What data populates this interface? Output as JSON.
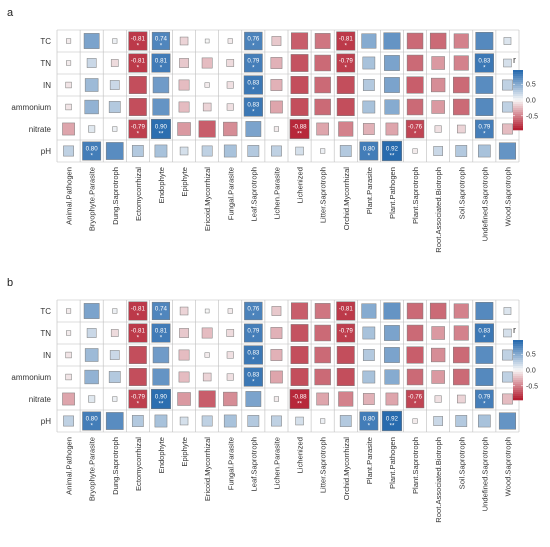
{
  "chart_data": [
    {
      "panel_label": "a",
      "type": "heatmap",
      "rows": [
        "TC",
        "TN",
        "IN",
        "ammonium",
        "nitrate",
        "pH"
      ],
      "columns": [
        "Animal.Pathogen",
        "Bryophyte.Parasite",
        "Dung.Saprotroph",
        "Ectomycorrhizal",
        "Endophyte",
        "Epiphyte",
        "Ericoid.Mycorrhizal",
        "Fungal.Parasite",
        "Leaf.Saprotroph",
        "Lichen.Parasite",
        "Lichenized",
        "Litter.Saprotroph",
        "Orchid.Mycorrhizal",
        "Plant.Parasite",
        "Plant.Pathogen",
        "Plant.Saprotroph",
        "Root.Associated.Biotroph",
        "Soil.Saprotroph",
        "Undefined.Saprotroph",
        "Wood.Saprotroph"
      ],
      "values": [
        [
          -0.05,
          0.55,
          0.05,
          -0.81,
          0.74,
          -0.15,
          0.0,
          -0.05,
          0.76,
          -0.2,
          -0.65,
          -0.55,
          -0.81,
          0.5,
          0.65,
          -0.6,
          -0.6,
          -0.5,
          0.72,
          0.12
        ],
        [
          -0.05,
          0.2,
          -0.12,
          -0.81,
          0.81,
          -0.2,
          -0.25,
          -0.12,
          0.79,
          -0.3,
          -0.7,
          -0.6,
          -0.79,
          0.35,
          0.55,
          -0.6,
          -0.4,
          -0.5,
          0.83,
          0.15
        ],
        [
          -0.08,
          0.4,
          0.2,
          -0.72,
          0.6,
          -0.25,
          -0.05,
          -0.1,
          0.83,
          -0.3,
          -0.72,
          -0.6,
          -0.72,
          0.3,
          0.55,
          -0.65,
          -0.45,
          -0.6,
          0.7,
          0.25
        ],
        [
          -0.08,
          0.45,
          0.3,
          -0.72,
          0.65,
          -0.25,
          -0.15,
          -0.1,
          0.83,
          -0.35,
          -0.72,
          -0.6,
          -0.72,
          0.35,
          0.5,
          -0.6,
          -0.4,
          -0.6,
          0.72,
          0.25
        ],
        [
          -0.35,
          0.1,
          0.05,
          -0.79,
          0.9,
          -0.4,
          -0.65,
          -0.45,
          0.55,
          -0.05,
          -0.88,
          -0.35,
          -0.5,
          -0.3,
          -0.35,
          -0.76,
          -0.1,
          -0.15,
          0.79,
          -0.25
        ],
        [
          0.25,
          0.8,
          0.7,
          0.3,
          0.35,
          0.15,
          0.25,
          0.35,
          0.3,
          0.25,
          0.15,
          0.05,
          0.3,
          0.8,
          0.92,
          -0.05,
          0.2,
          0.3,
          0.35,
          0.65
        ]
      ],
      "annotations": [
        {
          "row": "TC",
          "col": "Ectomycorrhizal",
          "label": "-0.81",
          "sig": "*"
        },
        {
          "row": "TC",
          "col": "Endophyte",
          "label": "0.74",
          "sig": "*"
        },
        {
          "row": "TC",
          "col": "Leaf.Saprotroph",
          "label": "0.76",
          "sig": "*"
        },
        {
          "row": "TC",
          "col": "Orchid.Mycorrhizal",
          "label": "-0.81",
          "sig": "*"
        },
        {
          "row": "TN",
          "col": "Ectomycorrhizal",
          "label": "-0.81",
          "sig": "*"
        },
        {
          "row": "TN",
          "col": "Endophyte",
          "label": "0.81",
          "sig": "*"
        },
        {
          "row": "TN",
          "col": "Leaf.Saprotroph",
          "label": "0.79",
          "sig": "*"
        },
        {
          "row": "TN",
          "col": "Orchid.Mycorrhizal",
          "label": "-0.79",
          "sig": "*"
        },
        {
          "row": "TN",
          "col": "Undefined.Saprotroph",
          "label": "0.83",
          "sig": "*"
        },
        {
          "row": "IN",
          "col": "Leaf.Saprotroph",
          "label": "0.83",
          "sig": "*"
        },
        {
          "row": "ammonium",
          "col": "Leaf.Saprotroph",
          "label": "0.83",
          "sig": "*"
        },
        {
          "row": "nitrate",
          "col": "Ectomycorrhizal",
          "label": "-0.79",
          "sig": "*"
        },
        {
          "row": "nitrate",
          "col": "Endophyte",
          "label": "0.90",
          "sig": "**"
        },
        {
          "row": "nitrate",
          "col": "Lichenized",
          "label": "-0.88",
          "sig": "**"
        },
        {
          "row": "nitrate",
          "col": "Plant.Saprotroph",
          "label": "-0.76",
          "sig": "*"
        },
        {
          "row": "nitrate",
          "col": "Undefined.Saprotroph",
          "label": "0.79",
          "sig": "*"
        },
        {
          "row": "pH",
          "col": "Bryophyte.Parasite",
          "label": "0.80",
          "sig": "*"
        },
        {
          "row": "pH",
          "col": "Plant.Parasite",
          "label": "0.80",
          "sig": "*"
        },
        {
          "row": "pH",
          "col": "Plant.Pathogen",
          "label": "0.92",
          "sig": "**"
        }
      ],
      "legend": {
        "title": "r",
        "ticks": [
          0.5,
          0.0,
          -0.5
        ],
        "tick_labels": [
          "0.5",
          "0.0",
          "-0.5"
        ],
        "range": [
          -0.95,
          0.95
        ],
        "placement": "right"
      },
      "colors": {
        "negative": "#b2182b",
        "neutral": "#f7f7f7",
        "positive": "#2166ac"
      }
    },
    {
      "panel_label": "b",
      "type": "heatmap",
      "rows": [
        "TC",
        "TN",
        "IN",
        "ammonium",
        "nitrate",
        "pH"
      ],
      "columns": [
        "Animal.Pathogen",
        "Bryophyte.Parasite",
        "Dung.Saprotroph",
        "Ectomycorrhizal",
        "Endophyte",
        "Epiphyte",
        "Ericoid.Mycorrhizal",
        "Fungal.Parasite",
        "Leaf.Saprotroph",
        "Lichen.Parasite",
        "Lichenized",
        "Litter.Saprotroph",
        "Orchid.Mycorrhizal",
        "Plant.Parasite",
        "Plant.Pathogen",
        "Plant.Saprotroph",
        "Root.Associated.Biotroph",
        "Soil.Saprotroph",
        "Undefined.Saprotroph",
        "Wood.Saprotroph"
      ],
      "values": [
        [
          -0.05,
          0.55,
          0.05,
          -0.81,
          0.74,
          -0.15,
          0.0,
          -0.05,
          0.76,
          -0.2,
          -0.65,
          -0.55,
          -0.81,
          0.5,
          0.65,
          -0.6,
          -0.6,
          -0.5,
          0.72,
          0.12
        ],
        [
          -0.05,
          0.2,
          -0.12,
          -0.81,
          0.81,
          -0.2,
          -0.25,
          -0.12,
          0.79,
          -0.3,
          -0.7,
          -0.6,
          -0.79,
          0.35,
          0.55,
          -0.6,
          -0.4,
          -0.5,
          0.83,
          0.15
        ],
        [
          -0.08,
          0.4,
          0.2,
          -0.72,
          0.6,
          -0.25,
          -0.05,
          -0.1,
          0.83,
          -0.3,
          -0.72,
          -0.6,
          -0.72,
          0.3,
          0.55,
          -0.65,
          -0.45,
          -0.6,
          0.7,
          0.25
        ],
        [
          -0.08,
          0.45,
          0.3,
          -0.72,
          0.65,
          -0.25,
          -0.15,
          -0.1,
          0.83,
          -0.35,
          -0.72,
          -0.6,
          -0.72,
          0.35,
          0.5,
          -0.6,
          -0.4,
          -0.6,
          0.72,
          0.25
        ],
        [
          -0.35,
          0.1,
          0.05,
          -0.79,
          0.9,
          -0.4,
          -0.65,
          -0.45,
          0.55,
          -0.05,
          -0.88,
          -0.35,
          -0.5,
          -0.3,
          -0.35,
          -0.76,
          -0.1,
          -0.15,
          0.79,
          -0.25
        ],
        [
          0.25,
          0.8,
          0.7,
          0.3,
          0.35,
          0.15,
          0.25,
          0.35,
          0.3,
          0.25,
          0.15,
          0.05,
          0.3,
          0.8,
          0.92,
          -0.05,
          0.2,
          0.3,
          0.35,
          0.65
        ]
      ],
      "annotations": [
        {
          "row": "TC",
          "col": "Ectomycorrhizal",
          "label": "-0.81",
          "sig": "*"
        },
        {
          "row": "TC",
          "col": "Endophyte",
          "label": "0.74",
          "sig": "*"
        },
        {
          "row": "TC",
          "col": "Leaf.Saprotroph",
          "label": "0.76",
          "sig": "*"
        },
        {
          "row": "TC",
          "col": "Orchid.Mycorrhizal",
          "label": "-0.81",
          "sig": "*"
        },
        {
          "row": "TN",
          "col": "Ectomycorrhizal",
          "label": "-0.81",
          "sig": "*"
        },
        {
          "row": "TN",
          "col": "Endophyte",
          "label": "0.81",
          "sig": "*"
        },
        {
          "row": "TN",
          "col": "Leaf.Saprotroph",
          "label": "0.79",
          "sig": "*"
        },
        {
          "row": "TN",
          "col": "Orchid.Mycorrhizal",
          "label": "-0.79",
          "sig": "*"
        },
        {
          "row": "TN",
          "col": "Undefined.Saprotroph",
          "label": "0.83",
          "sig": "*"
        },
        {
          "row": "IN",
          "col": "Leaf.Saprotroph",
          "label": "0.83",
          "sig": "*"
        },
        {
          "row": "ammonium",
          "col": "Leaf.Saprotroph",
          "label": "0.83",
          "sig": "*"
        },
        {
          "row": "nitrate",
          "col": "Ectomycorrhizal",
          "label": "-0.79",
          "sig": "*"
        },
        {
          "row": "nitrate",
          "col": "Endophyte",
          "label": "0.90",
          "sig": "**"
        },
        {
          "row": "nitrate",
          "col": "Lichenized",
          "label": "-0.88",
          "sig": "**"
        },
        {
          "row": "nitrate",
          "col": "Plant.Saprotroph",
          "label": "-0.76",
          "sig": "*"
        },
        {
          "row": "nitrate",
          "col": "Undefined.Saprotroph",
          "label": "0.79",
          "sig": "*"
        },
        {
          "row": "pH",
          "col": "Bryophyte.Parasite",
          "label": "0.80",
          "sig": "*"
        },
        {
          "row": "pH",
          "col": "Plant.Parasite",
          "label": "0.80",
          "sig": "*"
        },
        {
          "row": "pH",
          "col": "Plant.Pathogen",
          "label": "0.92",
          "sig": "**"
        }
      ],
      "legend": {
        "title": "r",
        "ticks": [
          0.5,
          0.0,
          -0.5
        ],
        "tick_labels": [
          "0.5",
          "0.0",
          "-0.5"
        ],
        "range": [
          -0.95,
          0.95
        ],
        "placement": "right"
      },
      "colors": {
        "negative": "#b2182b",
        "neutral": "#f7f7f7",
        "positive": "#2166ac"
      }
    }
  ]
}
